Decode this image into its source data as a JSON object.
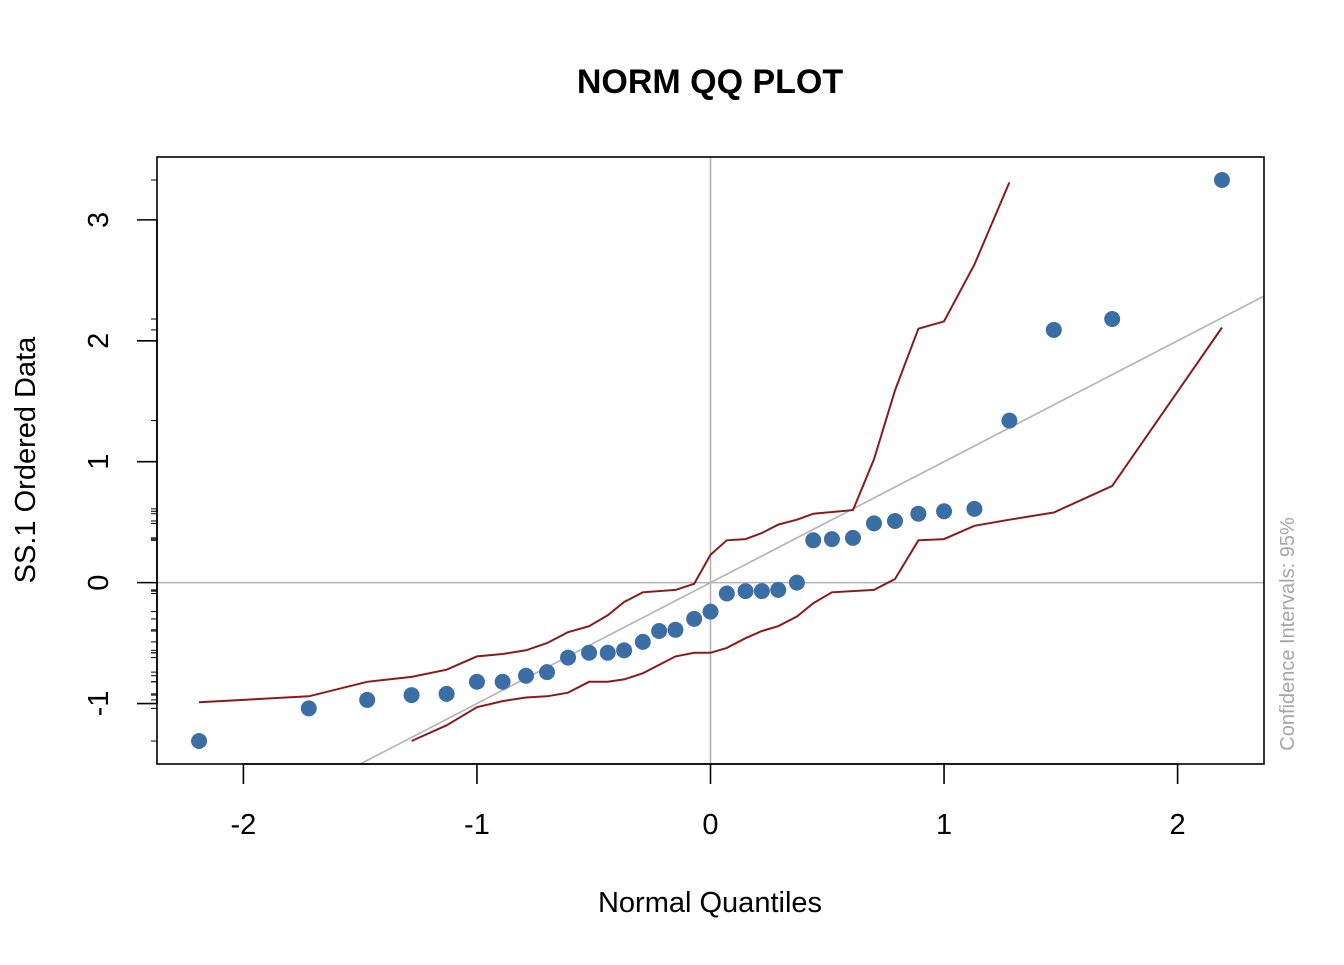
{
  "chart_data": {
    "type": "scatter",
    "title": "NORM QQ PLOT",
    "xlabel": "Normal Quantiles",
    "ylabel": "SS.1 Ordered Data",
    "side_note": "Confidence Intervals: 95%",
    "xlim": [
      -2.37,
      2.37
    ],
    "ylim": [
      -1.5,
      3.52
    ],
    "x_ticks": [
      -2,
      -1,
      0,
      1,
      2
    ],
    "x_tick_labels": [
      "-2",
      "-1",
      "0",
      "1",
      "2"
    ],
    "y_ticks": [
      -1,
      0,
      1,
      2,
      3
    ],
    "y_tick_labels": [
      "-1",
      "0",
      "1",
      "2",
      "3"
    ],
    "reference_lines": {
      "h": 0,
      "v": 0
    },
    "fit_line": {
      "intercept": 0.0,
      "slope": 1.0
    },
    "colors": {
      "points": "#3a6ea5",
      "ci": "#8b1a1a",
      "reference": "#b3b3b3",
      "axis": "#000000",
      "side_note": "#a6a6a6"
    },
    "points": [
      {
        "x": -2.19,
        "y": -1.31
      },
      {
        "x": -1.72,
        "y": -1.04
      },
      {
        "x": -1.47,
        "y": -0.97
      },
      {
        "x": -1.28,
        "y": -0.93
      },
      {
        "x": -1.13,
        "y": -0.92
      },
      {
        "x": -1.0,
        "y": -0.82
      },
      {
        "x": -0.89,
        "y": -0.82
      },
      {
        "x": -0.79,
        "y": -0.77
      },
      {
        "x": -0.7,
        "y": -0.74
      },
      {
        "x": -0.61,
        "y": -0.62
      },
      {
        "x": -0.52,
        "y": -0.58
      },
      {
        "x": -0.44,
        "y": -0.58
      },
      {
        "x": -0.37,
        "y": -0.56
      },
      {
        "x": -0.29,
        "y": -0.49
      },
      {
        "x": -0.22,
        "y": -0.4
      },
      {
        "x": -0.15,
        "y": -0.39
      },
      {
        "x": -0.07,
        "y": -0.3
      },
      {
        "x": 0.0,
        "y": -0.24
      },
      {
        "x": 0.07,
        "y": -0.09
      },
      {
        "x": 0.15,
        "y": -0.07
      },
      {
        "x": 0.22,
        "y": -0.07
      },
      {
        "x": 0.29,
        "y": -0.06
      },
      {
        "x": 0.37,
        "y": 0.0
      },
      {
        "x": 0.44,
        "y": 0.35
      },
      {
        "x": 0.52,
        "y": 0.36
      },
      {
        "x": 0.61,
        "y": 0.37
      },
      {
        "x": 0.7,
        "y": 0.49
      },
      {
        "x": 0.79,
        "y": 0.51
      },
      {
        "x": 0.89,
        "y": 0.57
      },
      {
        "x": 1.0,
        "y": 0.59
      },
      {
        "x": 1.13,
        "y": 0.61
      },
      {
        "x": 1.28,
        "y": 1.34
      },
      {
        "x": 1.47,
        "y": 2.09
      },
      {
        "x": 1.72,
        "y": 2.18
      },
      {
        "x": 2.19,
        "y": 3.33
      }
    ],
    "ci_upper": [
      {
        "x": -2.19,
        "y": -0.99
      },
      {
        "x": -1.72,
        "y": -0.94
      },
      {
        "x": -1.47,
        "y": -0.82
      },
      {
        "x": -1.28,
        "y": -0.78
      },
      {
        "x": -1.13,
        "y": -0.72
      },
      {
        "x": -1.0,
        "y": -0.61
      },
      {
        "x": -0.89,
        "y": -0.59
      },
      {
        "x": -0.79,
        "y": -0.56
      },
      {
        "x": -0.7,
        "y": -0.5
      },
      {
        "x": -0.61,
        "y": -0.41
      },
      {
        "x": -0.52,
        "y": -0.36
      },
      {
        "x": -0.44,
        "y": -0.27
      },
      {
        "x": -0.37,
        "y": -0.16
      },
      {
        "x": -0.29,
        "y": -0.08
      },
      {
        "x": -0.15,
        "y": -0.06
      },
      {
        "x": -0.07,
        "y": -0.01
      },
      {
        "x": 0.0,
        "y": 0.23
      },
      {
        "x": 0.07,
        "y": 0.35
      },
      {
        "x": 0.15,
        "y": 0.36
      },
      {
        "x": 0.22,
        "y": 0.41
      },
      {
        "x": 0.29,
        "y": 0.48
      },
      {
        "x": 0.37,
        "y": 0.52
      },
      {
        "x": 0.44,
        "y": 0.57
      },
      {
        "x": 0.61,
        "y": 0.6
      },
      {
        "x": 0.7,
        "y": 1.02
      },
      {
        "x": 0.79,
        "y": 1.59
      },
      {
        "x": 0.89,
        "y": 2.1
      },
      {
        "x": 1.0,
        "y": 2.16
      },
      {
        "x": 1.13,
        "y": 2.63
      },
      {
        "x": 1.28,
        "y": 3.31
      }
    ],
    "ci_lower": [
      {
        "x": -1.28,
        "y": -1.31
      },
      {
        "x": -1.13,
        "y": -1.18
      },
      {
        "x": -1.0,
        "y": -1.03
      },
      {
        "x": -0.89,
        "y": -0.98
      },
      {
        "x": -0.79,
        "y": -0.95
      },
      {
        "x": -0.7,
        "y": -0.94
      },
      {
        "x": -0.61,
        "y": -0.91
      },
      {
        "x": -0.52,
        "y": -0.82
      },
      {
        "x": -0.44,
        "y": -0.82
      },
      {
        "x": -0.37,
        "y": -0.8
      },
      {
        "x": -0.29,
        "y": -0.75
      },
      {
        "x": -0.15,
        "y": -0.61
      },
      {
        "x": -0.07,
        "y": -0.58
      },
      {
        "x": 0.0,
        "y": -0.58
      },
      {
        "x": 0.07,
        "y": -0.54
      },
      {
        "x": 0.15,
        "y": -0.46
      },
      {
        "x": 0.22,
        "y": -0.4
      },
      {
        "x": 0.29,
        "y": -0.36
      },
      {
        "x": 0.37,
        "y": -0.28
      },
      {
        "x": 0.44,
        "y": -0.17
      },
      {
        "x": 0.52,
        "y": -0.08
      },
      {
        "x": 0.7,
        "y": -0.06
      },
      {
        "x": 0.79,
        "y": 0.03
      },
      {
        "x": 0.89,
        "y": 0.35
      },
      {
        "x": 1.0,
        "y": 0.36
      },
      {
        "x": 1.13,
        "y": 0.47
      },
      {
        "x": 1.28,
        "y": 0.52
      },
      {
        "x": 1.47,
        "y": 0.58
      },
      {
        "x": 1.72,
        "y": 0.8
      },
      {
        "x": 2.19,
        "y": 2.11
      }
    ]
  }
}
